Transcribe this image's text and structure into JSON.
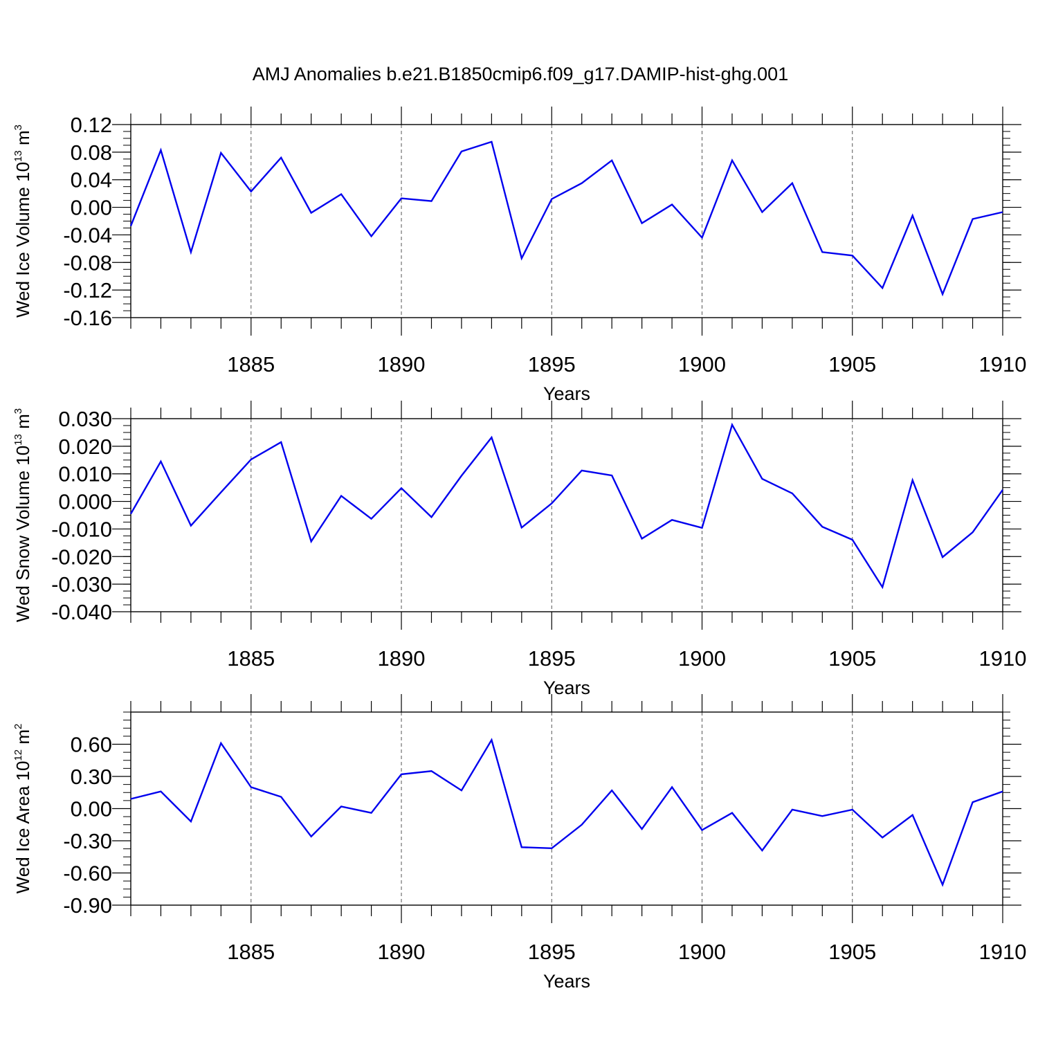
{
  "figure": {
    "title": "AMJ Anomalies b.e21.B1850cmip6.f09_g17.DAMIP-hist-ghg.001"
  },
  "chart_data": [
    {
      "type": "line",
      "title": "",
      "xlabel": "Years",
      "ylabel": "Wed Ice Volume 10",
      "ylabel_exp": "13",
      "ylabel_unit": "m",
      "ylabel_unit_exp": "3",
      "xlim": [
        1881,
        1910
      ],
      "ylim": [
        -0.16,
        0.12
      ],
      "x_ticks": [
        1885,
        1890,
        1895,
        1900,
        1905,
        1910
      ],
      "x_tick_labels": [
        "1885",
        "1890",
        "1895",
        "1900",
        "1905",
        "1910"
      ],
      "y_ticks": [
        0.12,
        0.08,
        0.04,
        0.0,
        -0.04,
        -0.08,
        -0.12,
        -0.16
      ],
      "y_tick_labels": [
        "0.12",
        "0.08",
        "0.04",
        "0.00",
        "-0.04",
        "-0.08",
        "-0.12",
        "-0.16"
      ],
      "grid": "vertical dashed at labeled years",
      "color": "#0000ee",
      "series": [
        {
          "x": [
            1881,
            1882,
            1883,
            1884,
            1885,
            1886,
            1887,
            1888,
            1889,
            1890,
            1891,
            1892,
            1893,
            1894,
            1895,
            1896,
            1897,
            1898,
            1899,
            1900,
            1901,
            1902,
            1903,
            1904,
            1905,
            1906,
            1907,
            1908,
            1909,
            1910
          ],
          "values": [
            -0.027,
            0.083,
            -0.065,
            0.079,
            0.023,
            0.072,
            -0.008,
            0.019,
            -0.042,
            0.013,
            0.009,
            0.081,
            0.095,
            -0.074,
            0.012,
            0.035,
            0.068,
            -0.023,
            0.004,
            -0.044,
            0.068,
            -0.007,
            0.035,
            -0.065,
            -0.07,
            -0.117,
            -0.012,
            -0.126,
            -0.017,
            -0.007
          ]
        }
      ]
    },
    {
      "type": "line",
      "title": "",
      "xlabel": "Years",
      "ylabel": "Wed Snow Volume 10",
      "ylabel_exp": "13",
      "ylabel_unit": "m",
      "ylabel_unit_exp": "3",
      "xlim": [
        1881,
        1910
      ],
      "ylim": [
        -0.04,
        0.03
      ],
      "x_ticks": [
        1885,
        1890,
        1895,
        1900,
        1905,
        1910
      ],
      "x_tick_labels": [
        "1885",
        "1890",
        "1895",
        "1900",
        "1905",
        "1910"
      ],
      "y_ticks": [
        0.03,
        0.02,
        0.01,
        0.0,
        -0.01,
        -0.02,
        -0.03,
        -0.04
      ],
      "y_tick_labels": [
        "0.030",
        "0.020",
        "0.010",
        "0.000",
        "-0.010",
        "-0.020",
        "-0.030",
        "-0.040"
      ],
      "grid": "vertical dashed at labeled years",
      "color": "#0000ee",
      "series": [
        {
          "x": [
            1881,
            1882,
            1883,
            1884,
            1885,
            1886,
            1887,
            1888,
            1889,
            1890,
            1891,
            1892,
            1893,
            1894,
            1895,
            1896,
            1897,
            1898,
            1899,
            1900,
            1901,
            1902,
            1903,
            1904,
            1905,
            1906,
            1907,
            1908,
            1909,
            1910
          ],
          "values": [
            -0.0045,
            0.0145,
            -0.0088,
            0.0033,
            0.0152,
            0.0215,
            -0.0145,
            0.002,
            -0.0063,
            0.0048,
            -0.0057,
            0.0093,
            0.0232,
            -0.0095,
            -0.0007,
            0.0112,
            0.0094,
            -0.0135,
            -0.0067,
            -0.0096,
            0.0278,
            0.0082,
            0.0029,
            -0.0092,
            -0.0139,
            -0.0311,
            0.0077,
            -0.0202,
            -0.0112,
            0.0042
          ]
        }
      ]
    },
    {
      "type": "line",
      "title": "",
      "xlabel": "Years",
      "ylabel": "Wed Ice Area 10",
      "ylabel_exp": "12",
      "ylabel_unit": "m",
      "ylabel_unit_exp": "2",
      "xlim": [
        1881,
        1910
      ],
      "ylim": [
        -0.9,
        0.9
      ],
      "x_ticks": [
        1885,
        1890,
        1895,
        1900,
        1905,
        1910
      ],
      "x_tick_labels": [
        "1885",
        "1890",
        "1895",
        "1900",
        "1905",
        "1910"
      ],
      "y_ticks": [
        0.6,
        0.3,
        0.0,
        -0.3,
        -0.6,
        -0.9
      ],
      "y_tick_labels": [
        "0.60",
        "0.30",
        "0.00",
        "-0.30",
        "-0.60",
        "-0.90"
      ],
      "grid": "vertical dashed at labeled years",
      "color": "#0000ee",
      "series": [
        {
          "x": [
            1881,
            1882,
            1883,
            1884,
            1885,
            1886,
            1887,
            1888,
            1889,
            1890,
            1891,
            1892,
            1893,
            1894,
            1895,
            1896,
            1897,
            1898,
            1899,
            1900,
            1901,
            1902,
            1903,
            1904,
            1905,
            1906,
            1907,
            1908,
            1909,
            1910
          ],
          "values": [
            0.09,
            0.16,
            -0.12,
            0.61,
            0.2,
            0.11,
            -0.26,
            0.02,
            -0.04,
            0.32,
            0.35,
            0.17,
            0.64,
            -0.36,
            -0.37,
            -0.15,
            0.17,
            -0.19,
            0.2,
            -0.2,
            -0.04,
            -0.39,
            -0.01,
            -0.07,
            -0.01,
            -0.27,
            -0.06,
            -0.71,
            0.06,
            0.16
          ]
        }
      ]
    }
  ]
}
